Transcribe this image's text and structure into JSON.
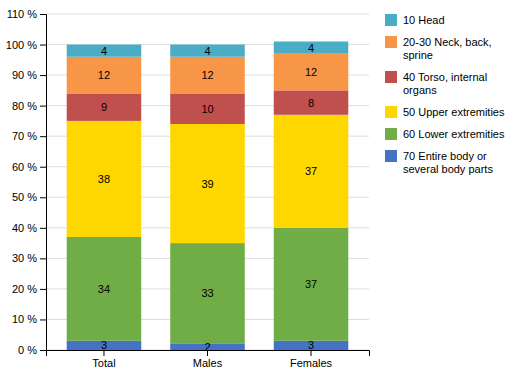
{
  "chart_data": {
    "type": "bar",
    "stacked": true,
    "data_labels": true,
    "grid": true,
    "legend": "right",
    "categories": [
      "Total",
      "Males",
      "Females"
    ],
    "series": [
      {
        "name": "70 Entire body or\nseveral body parts",
        "values": [
          3,
          2,
          3
        ],
        "color": "#4472C4"
      },
      {
        "name": "60 Lower extremities",
        "values": [
          34,
          33,
          37
        ],
        "color": "#70AD47"
      },
      {
        "name": "50 Upper extremities",
        "values": [
          38,
          39,
          37
        ],
        "color": "#FFD700"
      },
      {
        "name": "40 Torso, internal\norgans",
        "values": [
          9,
          10,
          8
        ],
        "color": "#C0504D"
      },
      {
        "name": "20-30 Neck, back,\nsprine",
        "values": [
          12,
          12,
          12
        ],
        "color": "#F79646"
      },
      {
        "name": "10  Head",
        "values": [
          4,
          4,
          4
        ],
        "color": "#4BACC6"
      }
    ],
    "ylim": [
      0,
      110
    ],
    "yticks": [
      {
        "value": 0,
        "label": "0 %"
      },
      {
        "value": 10,
        "label": "10 %"
      },
      {
        "value": 20,
        "label": "20 %"
      },
      {
        "value": 30,
        "label": "30 %"
      },
      {
        "value": 40,
        "label": "40 %"
      },
      {
        "value": 50,
        "label": "50 %"
      },
      {
        "value": 60,
        "label": "60 %"
      },
      {
        "value": 70,
        "label": "70 %"
      },
      {
        "value": 80,
        "label": "80 %"
      },
      {
        "value": 90,
        "label": "90 %"
      },
      {
        "value": 100,
        "label": "100 %"
      },
      {
        "value": 110,
        "label": "110 %"
      }
    ]
  }
}
